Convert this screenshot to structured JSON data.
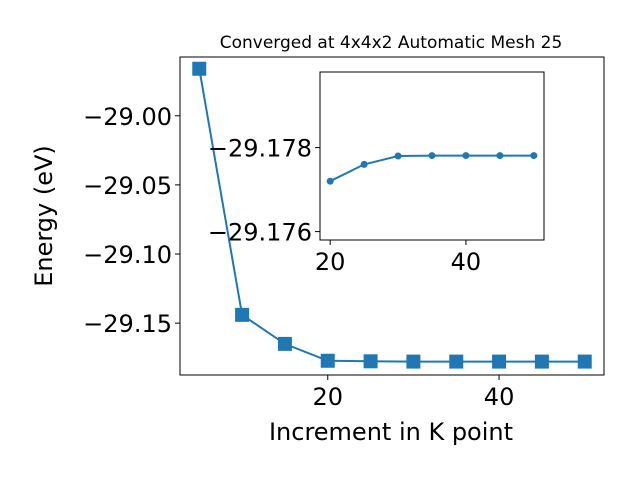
{
  "chart_data": [
    {
      "type": "line",
      "title": "Converged at 4x4x2 Automatic Mesh 25",
      "xlabel": "Increment in K point",
      "ylabel": "Energy (eV)",
      "x": [
        5,
        10,
        15,
        20,
        25,
        30,
        35,
        40,
        45,
        50
      ],
      "y": [
        -28.966,
        -29.144,
        -29.165,
        -29.1772,
        -29.1776,
        -29.1778,
        -29.1778,
        -29.1778,
        -29.1778,
        -29.1778
      ],
      "xlim": [
        2.75,
        52.25
      ],
      "ylim": [
        -29.1875,
        -28.9575
      ],
      "xticks": [
        20,
        40
      ],
      "xtick_labels": [
        "20",
        "40"
      ],
      "yticks": [
        -29.0,
        -29.05,
        -29.1,
        -29.15
      ],
      "ytick_labels": [
        "−29.00",
        "−29.05",
        "−29.10",
        "−29.15"
      ],
      "marker": "square",
      "color": "#1f77b4",
      "grid": false
    },
    {
      "type": "line",
      "role": "inset",
      "title": "",
      "x": [
        20,
        25,
        30,
        35,
        40,
        45,
        50
      ],
      "y": [
        -29.1772,
        -29.1776,
        -29.1778,
        -29.17781,
        -29.17781,
        -29.17781,
        -29.17781
      ],
      "xlim": [
        18.5,
        51.5
      ],
      "ylim": [
        -29.1758,
        -29.1798
      ],
      "xticks": [
        20,
        40
      ],
      "xtick_labels": [
        "20",
        "40"
      ],
      "yticks": [
        -29.178,
        -29.176
      ],
      "ytick_labels": [
        "−29.178",
        "−29.176"
      ],
      "marker": "circle",
      "color": "#1f77b4",
      "grid": false
    }
  ]
}
